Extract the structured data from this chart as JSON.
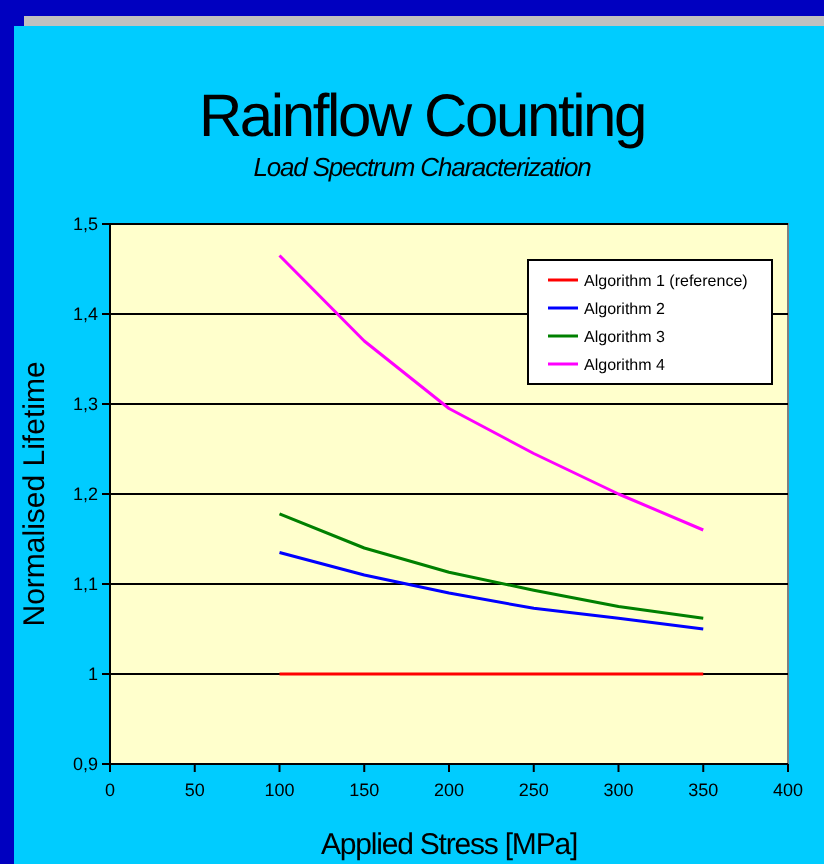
{
  "chart_data": {
    "type": "line",
    "title": "Rainflow Counting",
    "subtitle": "Load Spectrum Characterization",
    "xlabel": "Applied Stress [MPa]",
    "ylabel": "Normalised Lifetime",
    "x": [
      100,
      150,
      200,
      250,
      300,
      350
    ],
    "series": [
      {
        "name": "Algorithm 1 (reference)",
        "color": "#ff0000",
        "values": [
          1,
          1,
          1,
          1,
          1,
          1
        ]
      },
      {
        "name": "Algorithm 2",
        "color": "#0000ff",
        "values": [
          1.135,
          1.11,
          1.09,
          1.073,
          1.062,
          1.05
        ]
      },
      {
        "name": "Algorithm 3",
        "color": "#008000",
        "values": [
          1.178,
          1.14,
          1.113,
          1.093,
          1.075,
          1.062
        ]
      },
      {
        "name": "Algorithm 4",
        "color": "#ff00ff",
        "values": [
          1.465,
          1.37,
          1.295,
          1.245,
          1.2,
          1.16
        ]
      }
    ],
    "xlim": [
      0,
      400
    ],
    "xticks": [
      0,
      50,
      100,
      150,
      200,
      250,
      300,
      350,
      400
    ],
    "ylim": [
      0.9,
      1.5
    ],
    "yticks": [
      {
        "value": 0.9,
        "label": "0,9"
      },
      {
        "value": 1,
        "label": "1"
      },
      {
        "value": 1.1,
        "label": "1,1"
      },
      {
        "value": 1.2,
        "label": "1,2"
      },
      {
        "value": 1.3,
        "label": "1,3"
      },
      {
        "value": 1.4,
        "label": "1,4"
      },
      {
        "value": 1.5,
        "label": "1,5"
      }
    ],
    "grid": "y",
    "legend": "top right",
    "marker": "none",
    "line_style": "solid"
  }
}
